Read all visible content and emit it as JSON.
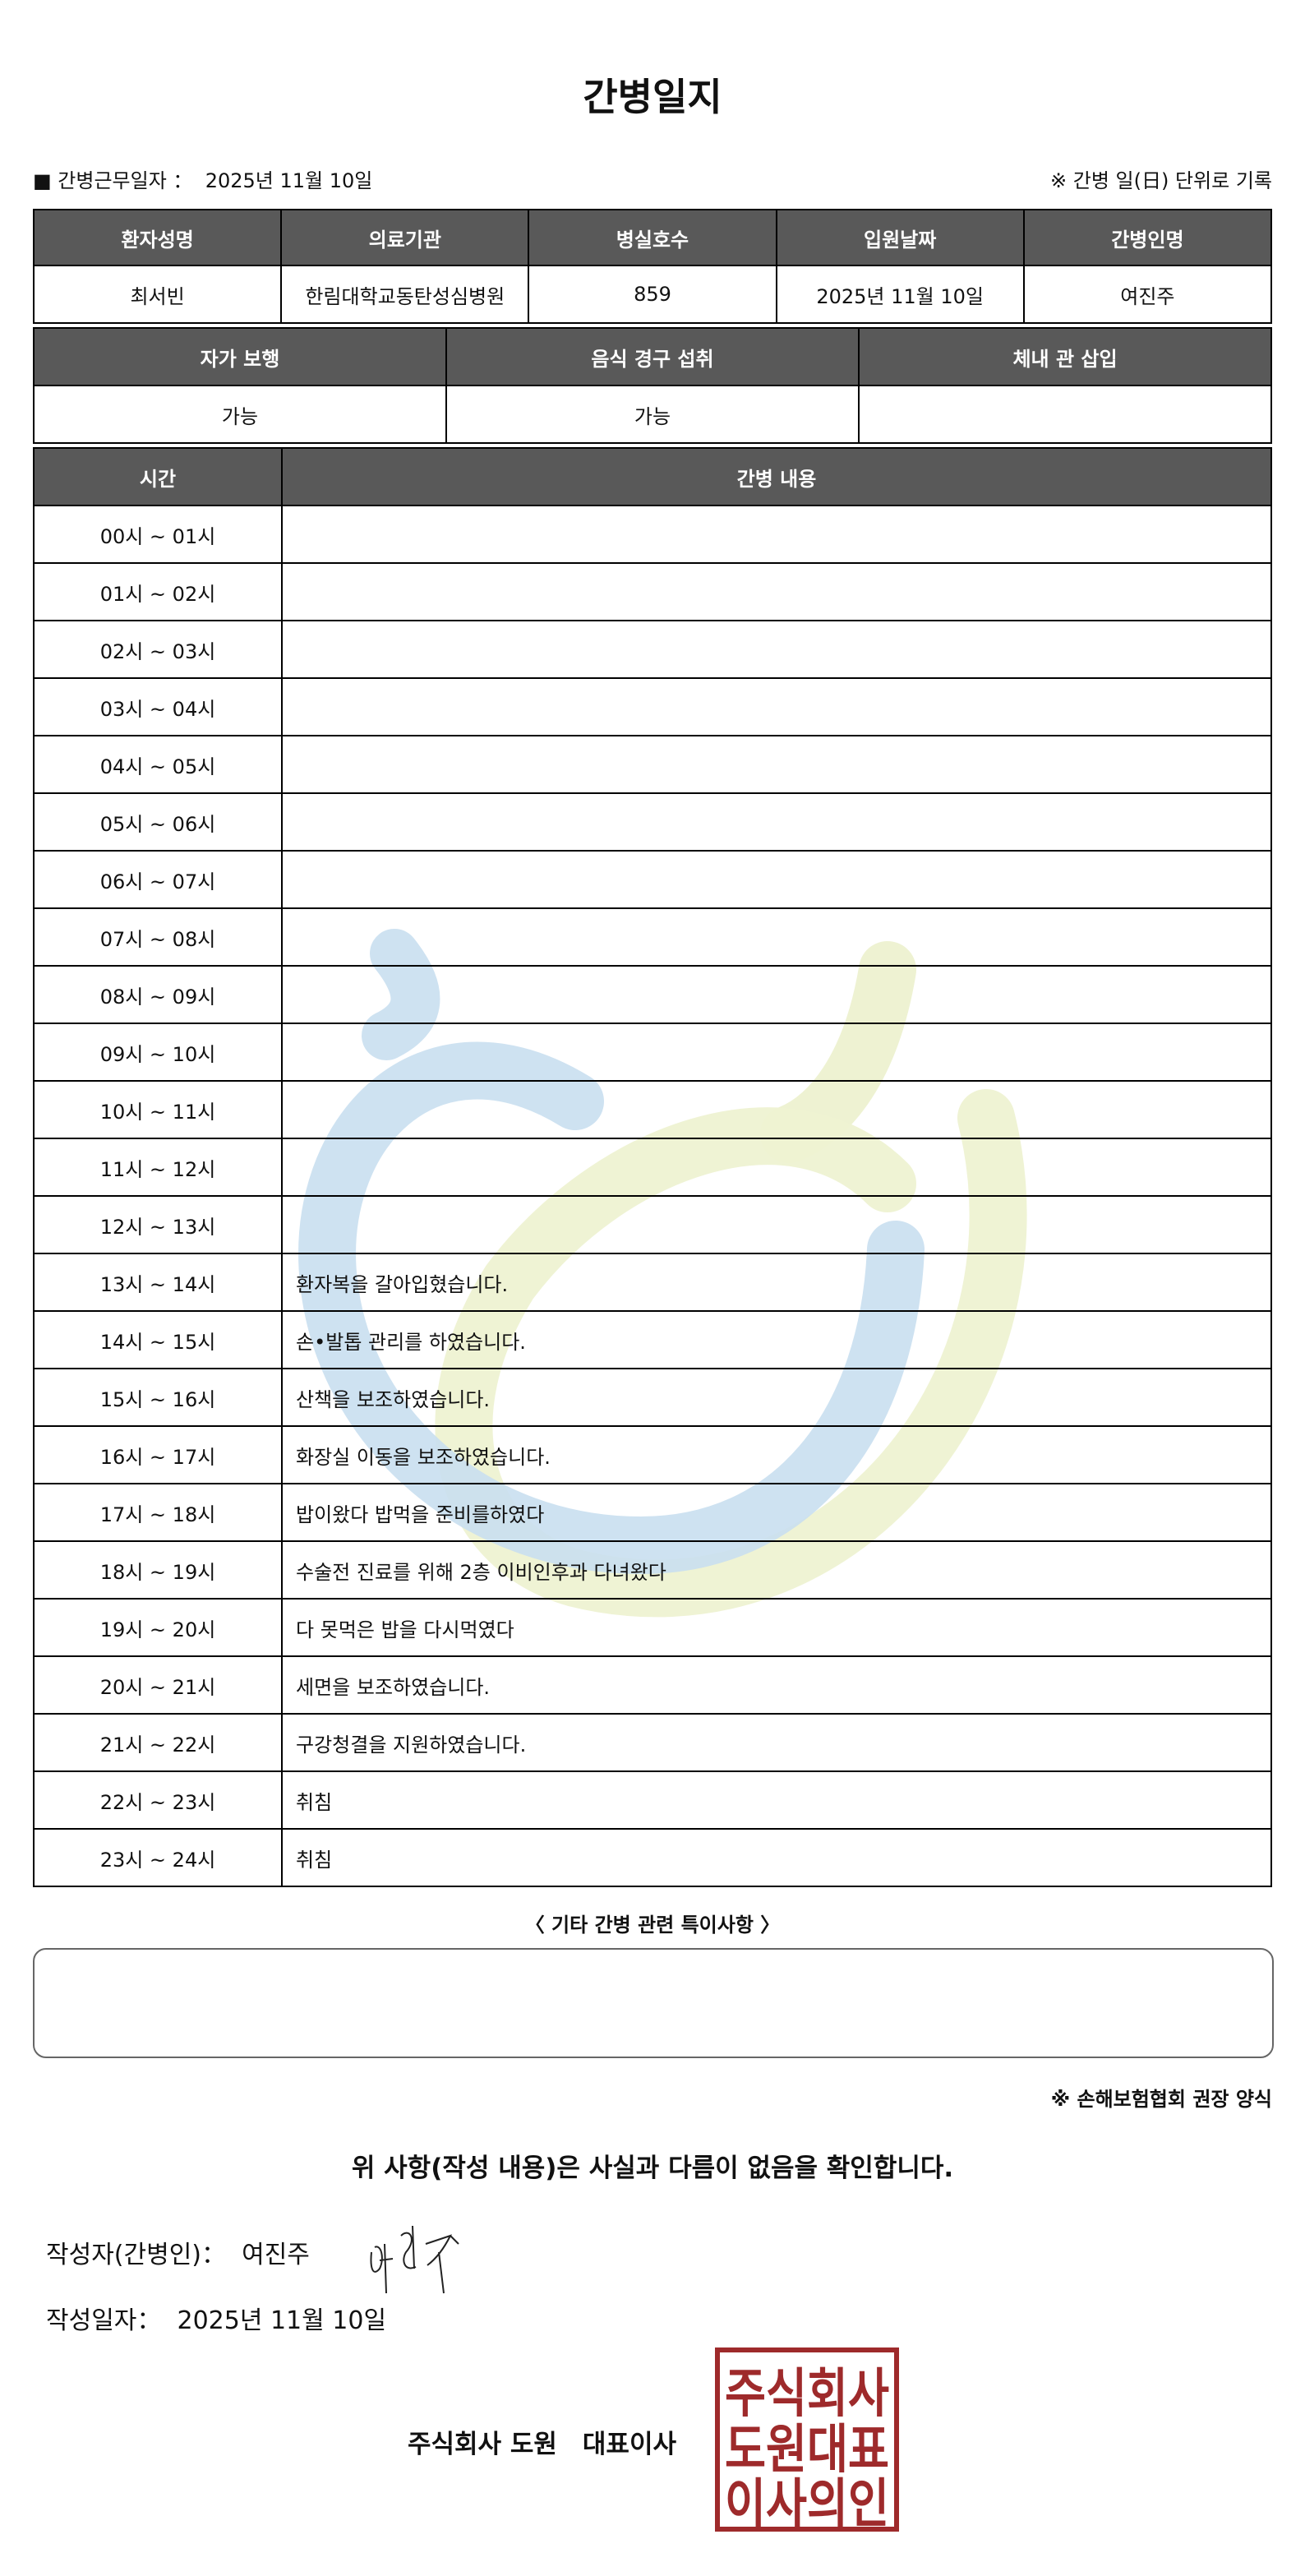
{
  "title": "간병일지",
  "info": {
    "work_date_label": "■ 간병근무일자 ：",
    "work_date": "2025년 11월 10일",
    "note": "※ 간병 일(日) 단위로 기록"
  },
  "patient_table": {
    "headers": [
      "환자성명",
      "의료기관",
      "병실호수",
      "입원날짜",
      "간병인명"
    ],
    "values": [
      "최서빈",
      "한림대학교동탄성심병원",
      "859",
      "2025년 11월 10일",
      "여진주"
    ]
  },
  "status_table": {
    "headers": [
      "자가 보행",
      "음식 경구 섭취",
      "체내 관 삽입"
    ],
    "values": [
      "가능",
      "가능",
      ""
    ]
  },
  "log_table": {
    "headers": [
      "시간",
      "간병 내용"
    ],
    "rows": [
      {
        "time": "00시 ~ 01시",
        "content": ""
      },
      {
        "time": "01시 ~ 02시",
        "content": ""
      },
      {
        "time": "02시 ~ 03시",
        "content": ""
      },
      {
        "time": "03시 ~ 04시",
        "content": ""
      },
      {
        "time": "04시 ~ 05시",
        "content": ""
      },
      {
        "time": "05시 ~ 06시",
        "content": ""
      },
      {
        "time": "06시 ~ 07시",
        "content": ""
      },
      {
        "time": "07시 ~ 08시",
        "content": ""
      },
      {
        "time": "08시 ~ 09시",
        "content": ""
      },
      {
        "time": "09시 ~ 10시",
        "content": ""
      },
      {
        "time": "10시 ~ 11시",
        "content": ""
      },
      {
        "time": "11시 ~ 12시",
        "content": ""
      },
      {
        "time": "12시 ~ 13시",
        "content": ""
      },
      {
        "time": "13시 ~ 14시",
        "content": "환자복을 갈아입혔습니다."
      },
      {
        "time": "14시 ~ 15시",
        "content": "손•발톱 관리를 하였습니다."
      },
      {
        "time": "15시 ~ 16시",
        "content": "산책을 보조하였습니다."
      },
      {
        "time": "16시 ~ 17시",
        "content": "화장실 이동을 보조하였습니다."
      },
      {
        "time": "17시 ~ 18시",
        "content": "밥이왔다 밥먹을 준비를하였다"
      },
      {
        "time": "18시 ~ 19시",
        "content": "수술전 진료를 위해 2층 이비인후과 다녀왔다"
      },
      {
        "time": "19시 ~ 20시",
        "content": "다 못먹은 밥을 다시먹였다"
      },
      {
        "time": "20시 ~ 21시",
        "content": "세면을 보조하였습니다."
      },
      {
        "time": "21시 ~ 22시",
        "content": "구강청결을 지원하였습니다."
      },
      {
        "time": "22시 ~ 23시",
        "content": "취침"
      },
      {
        "time": "23시 ~ 24시",
        "content": "취침"
      }
    ]
  },
  "notes": {
    "title": "〈 기타 간병 관련 특이사항 〉",
    "content": ""
  },
  "form_note": "※ 손해보험협회 권장 양식",
  "confirm": "위 사항(작성 내용)은 사실과 다름이 없음을 확인합니다.",
  "writer": {
    "label": "작성자(간병인)：",
    "name": "여진주"
  },
  "written_date": {
    "label": "작성일자：",
    "value": "2025년 11월 10일"
  },
  "company": "주식회사 도원　대표이사",
  "stamp": {
    "lines": [
      "주식회사",
      "도원대표",
      "이사의인"
    ],
    "color": "#9e2a2b"
  },
  "colors": {
    "header_bg": "#595959",
    "watermark_blue": "#c9dff0",
    "watermark_green": "#eef2d2"
  }
}
